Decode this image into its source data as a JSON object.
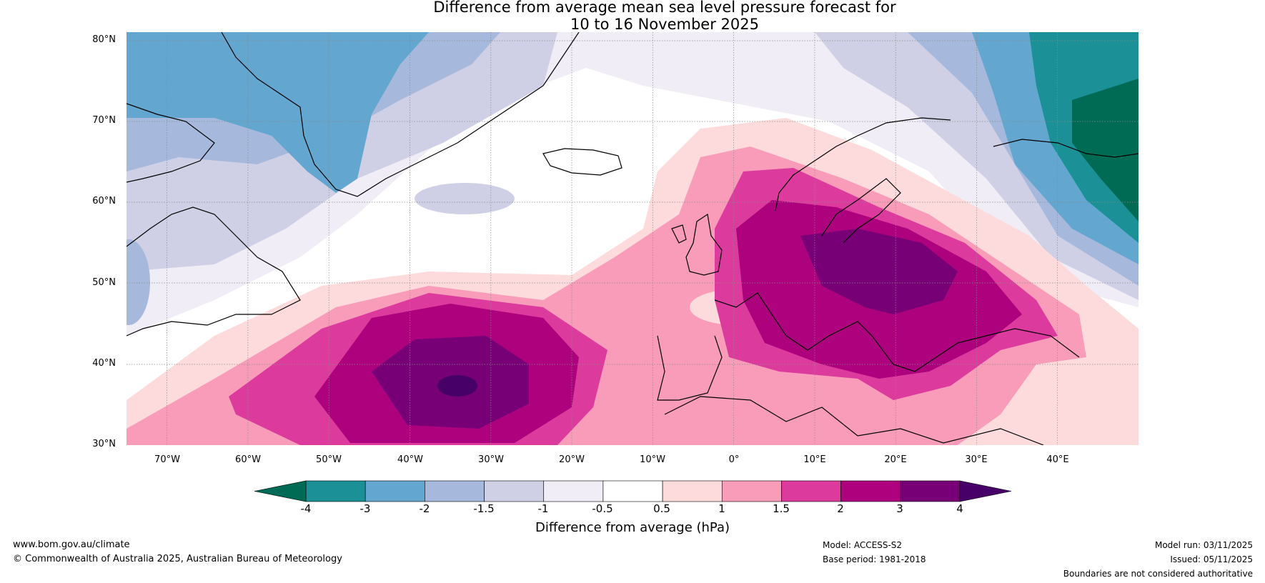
{
  "title": {
    "line1": "Difference from average mean sea level pressure forecast for",
    "line2": "10 to 16 November 2025"
  },
  "map": {
    "projection": "equirectangular",
    "lon_range": [
      -75,
      50
    ],
    "lat_range": [
      30,
      81
    ],
    "lat_labels": [
      "80°N",
      "70°N",
      "60°N",
      "50°N",
      "40°N",
      "30°N"
    ],
    "lon_labels": [
      "70°W",
      "60°W",
      "50°W",
      "40°W",
      "30°W",
      "20°W",
      "10°W",
      "0°",
      "10°E",
      "20°E",
      "30°E",
      "40°E"
    ],
    "anomaly_centres": [
      {
        "name": "North Atlantic high",
        "lon": -34,
        "lat": 38,
        "value_range": "3 to 4+"
      },
      {
        "name": "Central Europe high",
        "lon": 19,
        "lat": 53,
        "value_range": "3 to 4"
      },
      {
        "name": "Russia low",
        "lon": 47,
        "lat": 63,
        "value_range": "below -4"
      },
      {
        "name": "Greenland low",
        "lon": -45,
        "lat": 76,
        "value_range": "-3 to -2"
      }
    ]
  },
  "colorbar": {
    "title": "Difference from average (hPa)",
    "ticks": [
      "-4",
      "-3",
      "-2",
      "-1.5",
      "-1",
      "-0.5",
      "0.5",
      "1",
      "1.5",
      "2",
      "3",
      "4"
    ],
    "colors": {
      "below_-4": "#006b55",
      "-4_-3": "#1b9096",
      "-3_-2": "#63a6cf",
      "-2_-1.5": "#a6b9dc",
      "-1.5_-1": "#cfd0e6",
      "-1_-0.5": "#f1edf6",
      "-0.5_0.5": "#ffffff",
      "0.5_1": "#fddbdc",
      "1_1.5": "#f89cba",
      "1.5_2": "#dd3a9d",
      "2_3": "#ad017d",
      "3_4": "#780077",
      "above_4": "#470067"
    }
  },
  "footer": {
    "website": "www.bom.gov.au/climate",
    "copyright": "© Commonwealth of Australia 2025, Australian Bureau of Meteorology",
    "model": "Model: ACCESS-S2",
    "base_period": "Base period: 1981-2018",
    "model_run": "Model run: 03/11/2025",
    "issued": "Issued: 05/11/2025",
    "disclaimer": "Boundaries are not considered authoritative"
  }
}
